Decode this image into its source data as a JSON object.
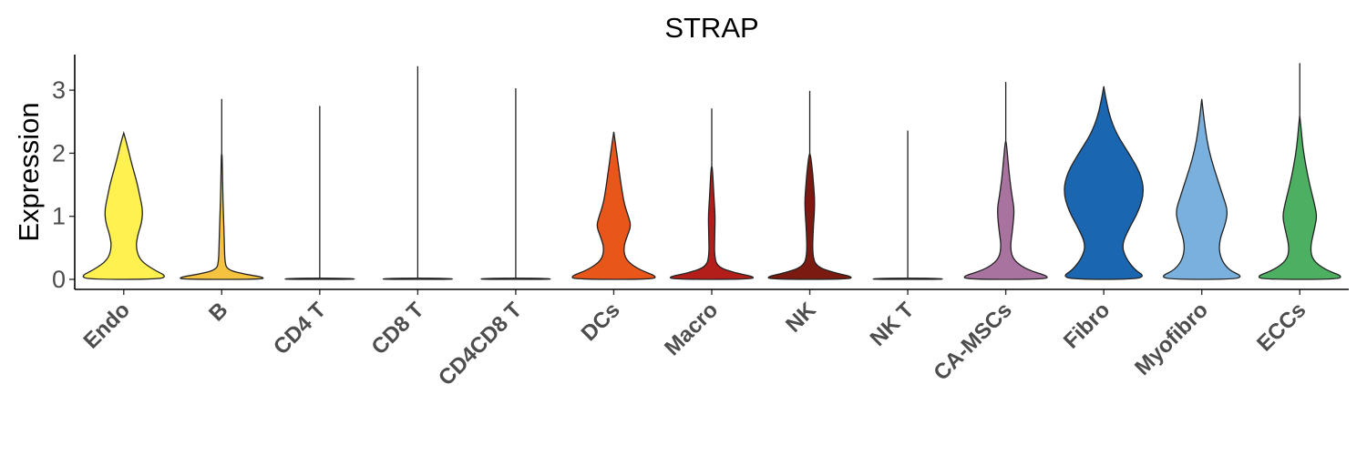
{
  "chart_data": {
    "type": "violin",
    "title": "STRAP",
    "ylabel": "Expression",
    "xlabel": "",
    "ylim": [
      -0.15,
      3.6
    ],
    "yticks": [
      0,
      1,
      2,
      3
    ],
    "grid": false,
    "legend": "none",
    "categories": [
      "Endo",
      "B",
      "CD4 T",
      "CD8 T",
      "CD4CD8 T",
      "DCs",
      "Macro",
      "NK",
      "NK T",
      "CA-MSCs",
      "Fibro",
      "Myofibro",
      "ECCs"
    ],
    "colors": [
      "#FFF150",
      "#F6C341",
      "#E8E8E8",
      "#E8E8E8",
      "#E8E8E8",
      "#E8561A",
      "#B41E1A",
      "#7A1A10",
      "#E8E8E8",
      "#A9739F",
      "#1A66B0",
      "#7AB0DD",
      "#4DAF62"
    ],
    "max_values": [
      2.32,
      2.86,
      2.75,
      3.38,
      3.03,
      2.34,
      2.71,
      2.99,
      2.36,
      3.13,
      3.06,
      2.86,
      3.43
    ],
    "density_top": [
      2.32,
      2.0,
      0.02,
      0.02,
      0.02,
      2.34,
      1.8,
      2.0,
      0.02,
      2.2,
      3.06,
      2.86,
      2.6
    ],
    "density_profiles": [
      [
        [
          0,
          0.8
        ],
        [
          0.05,
          1.0
        ],
        [
          0.15,
          0.7
        ],
        [
          0.3,
          0.38
        ],
        [
          0.5,
          0.28
        ],
        [
          0.7,
          0.32
        ],
        [
          0.9,
          0.42
        ],
        [
          1.1,
          0.44
        ],
        [
          1.3,
          0.38
        ],
        [
          1.5,
          0.32
        ],
        [
          1.7,
          0.24
        ],
        [
          1.9,
          0.16
        ],
        [
          2.1,
          0.09
        ],
        [
          2.25,
          0.03
        ],
        [
          2.32,
          0
        ]
      ],
      [
        [
          0,
          0.9
        ],
        [
          0.03,
          1.0
        ],
        [
          0.08,
          0.55
        ],
        [
          0.15,
          0.12
        ],
        [
          0.3,
          0.07
        ],
        [
          0.6,
          0.06
        ],
        [
          1.0,
          0.04
        ],
        [
          1.5,
          0.02
        ],
        [
          2.0,
          0.01
        ]
      ],
      [
        [
          0,
          1.0
        ],
        [
          0.02,
          0.5
        ]
      ],
      [
        [
          0,
          1.0
        ],
        [
          0.02,
          0.5
        ]
      ],
      [
        [
          0,
          1.0
        ],
        [
          0.02,
          0.5
        ]
      ],
      [
        [
          0,
          0.9
        ],
        [
          0.05,
          1.0
        ],
        [
          0.15,
          0.6
        ],
        [
          0.3,
          0.28
        ],
        [
          0.5,
          0.22
        ],
        [
          0.7,
          0.32
        ],
        [
          0.85,
          0.4
        ],
        [
          1.0,
          0.34
        ],
        [
          1.2,
          0.24
        ],
        [
          1.5,
          0.17
        ],
        [
          1.8,
          0.11
        ],
        [
          2.0,
          0.07
        ],
        [
          2.2,
          0.03
        ],
        [
          2.34,
          0
        ]
      ],
      [
        [
          0,
          0.9
        ],
        [
          0.04,
          1.0
        ],
        [
          0.1,
          0.55
        ],
        [
          0.2,
          0.12
        ],
        [
          0.4,
          0.06
        ],
        [
          0.7,
          0.07
        ],
        [
          1.0,
          0.08
        ],
        [
          1.3,
          0.05
        ],
        [
          1.6,
          0.03
        ],
        [
          1.8,
          0.01
        ]
      ],
      [
        [
          0,
          0.9
        ],
        [
          0.04,
          1.0
        ],
        [
          0.1,
          0.6
        ],
        [
          0.2,
          0.15
        ],
        [
          0.4,
          0.06
        ],
        [
          0.8,
          0.08
        ],
        [
          1.2,
          0.12
        ],
        [
          1.5,
          0.09
        ],
        [
          1.8,
          0.05
        ],
        [
          2.0,
          0.01
        ]
      ],
      [
        [
          0,
          1.0
        ],
        [
          0.02,
          0.5
        ]
      ],
      [
        [
          0,
          0.9
        ],
        [
          0.05,
          1.0
        ],
        [
          0.15,
          0.5
        ],
        [
          0.3,
          0.18
        ],
        [
          0.5,
          0.1
        ],
        [
          0.8,
          0.16
        ],
        [
          1.1,
          0.2
        ],
        [
          1.3,
          0.15
        ],
        [
          1.6,
          0.09
        ],
        [
          1.9,
          0.05
        ],
        [
          2.2,
          0.01
        ]
      ],
      [
        [
          0,
          0.7
        ],
        [
          0.05,
          0.95
        ],
        [
          0.15,
          0.72
        ],
        [
          0.35,
          0.5
        ],
        [
          0.55,
          0.42
        ],
        [
          0.8,
          0.58
        ],
        [
          1.1,
          0.82
        ],
        [
          1.4,
          0.94
        ],
        [
          1.7,
          0.84
        ],
        [
          2.0,
          0.58
        ],
        [
          2.3,
          0.3
        ],
        [
          2.6,
          0.13
        ],
        [
          2.9,
          0.04
        ],
        [
          3.06,
          0
        ]
      ],
      [
        [
          0,
          0.75
        ],
        [
          0.05,
          0.95
        ],
        [
          0.15,
          0.62
        ],
        [
          0.35,
          0.42
        ],
        [
          0.6,
          0.4
        ],
        [
          0.9,
          0.56
        ],
        [
          1.1,
          0.6
        ],
        [
          1.3,
          0.5
        ],
        [
          1.6,
          0.36
        ],
        [
          1.9,
          0.22
        ],
        [
          2.2,
          0.12
        ],
        [
          2.5,
          0.06
        ],
        [
          2.86,
          0
        ]
      ],
      [
        [
          0,
          0.85
        ],
        [
          0.05,
          1.0
        ],
        [
          0.15,
          0.6
        ],
        [
          0.3,
          0.3
        ],
        [
          0.5,
          0.24
        ],
        [
          0.8,
          0.34
        ],
        [
          1.0,
          0.4
        ],
        [
          1.2,
          0.34
        ],
        [
          1.5,
          0.23
        ],
        [
          1.8,
          0.14
        ],
        [
          2.1,
          0.07
        ],
        [
          2.4,
          0.03
        ],
        [
          2.6,
          0
        ]
      ]
    ]
  }
}
